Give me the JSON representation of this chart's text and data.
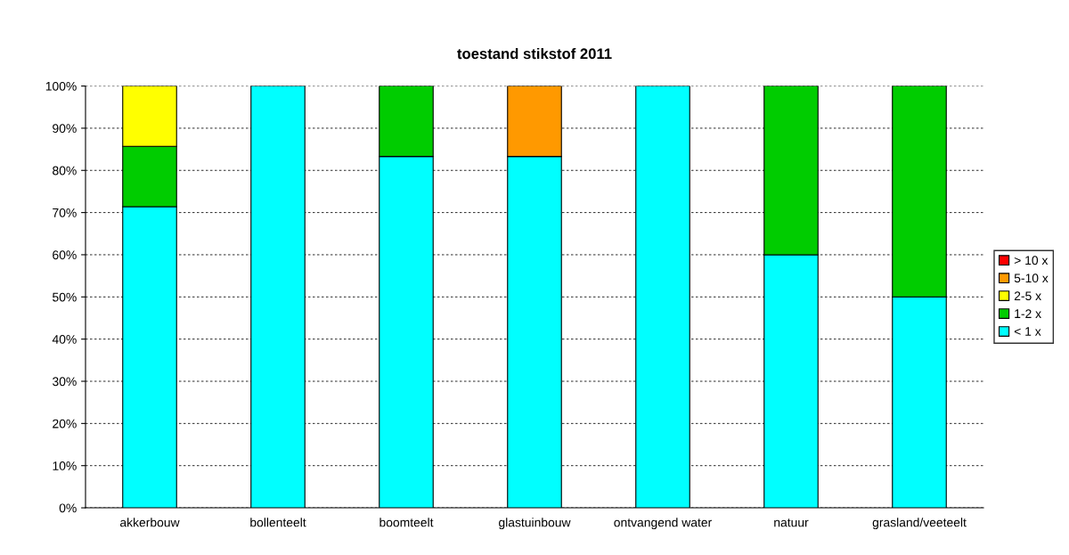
{
  "chart_data": {
    "type": "bar",
    "title": "toestand stikstof 2011",
    "stacked": true,
    "categories": [
      "akkerbouw",
      "bollenteelt",
      "boomteelt",
      "glastuinbouw",
      "ontvangend water",
      "natuur",
      "grasland/veeteelt"
    ],
    "series": [
      {
        "name": "< 1 x",
        "color": "#00ffff",
        "values": [
          71.4,
          100,
          83.3,
          83.3,
          100,
          60,
          50
        ]
      },
      {
        "name": "1-2 x",
        "color": "#00cc00",
        "values": [
          14.3,
          null,
          16.7,
          null,
          null,
          40,
          50
        ]
      },
      {
        "name": "2-5 x",
        "color": "#ffff00",
        "values": [
          14.3,
          null,
          null,
          null,
          null,
          null,
          null
        ]
      },
      {
        "name": "5-10 x",
        "color": "#ff9900",
        "values": [
          null,
          null,
          null,
          16.7,
          null,
          null,
          null
        ]
      },
      {
        "name": "> 10 x",
        "color": "#ff0000",
        "values": [
          null,
          null,
          null,
          null,
          null,
          null,
          null
        ]
      }
    ],
    "ylim": [
      0,
      100
    ],
    "yticks": [
      {
        "value": 0,
        "label": "0%"
      },
      {
        "value": 10,
        "label": "10%"
      },
      {
        "value": 20,
        "label": "20%"
      },
      {
        "value": 30,
        "label": "30%"
      },
      {
        "value": 40,
        "label": "40%"
      },
      {
        "value": 50,
        "label": "50%"
      },
      {
        "value": 60,
        "label": "60%"
      },
      {
        "value": 70,
        "label": "70%"
      },
      {
        "value": 80,
        "label": "80%"
      },
      {
        "value": 90,
        "label": "90%"
      },
      {
        "value": 100,
        "label": "100%"
      }
    ],
    "grid": "y",
    "legend": "right",
    "line_style": "dashed"
  }
}
